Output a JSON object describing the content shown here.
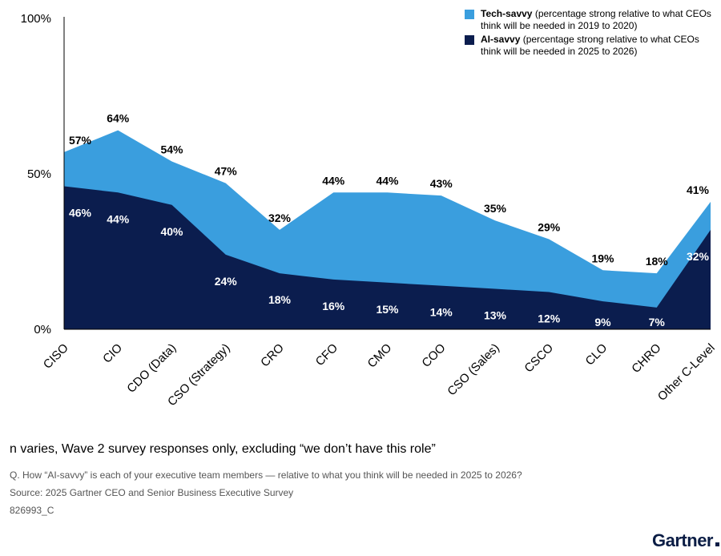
{
  "chart_data": {
    "type": "area",
    "categories": [
      "CISO",
      "CIO",
      "CDO (Data)",
      "CSO (Strategy)",
      "CRO",
      "CFO",
      "CMO",
      "COO",
      "CSO (Sales)",
      "CSCO",
      "CLO",
      "CHRO",
      "Other C-Level"
    ],
    "series": [
      {
        "name": "Tech-savvy",
        "values": [
          57,
          64,
          54,
          47,
          32,
          44,
          44,
          43,
          35,
          29,
          19,
          18,
          41
        ],
        "color": "#3a9ede",
        "labels": [
          "57%",
          "64%",
          "54%",
          "47%",
          "32%",
          "44%",
          "44%",
          "43%",
          "35%",
          "29%",
          "19%",
          "18%",
          "41%"
        ]
      },
      {
        "name": "AI-savvy",
        "values": [
          46,
          44,
          40,
          24,
          18,
          16,
          15,
          14,
          13,
          12,
          9,
          7,
          32
        ],
        "color": "#0b1d4e",
        "labels": [
          "46%",
          "44%",
          "40%",
          "24%",
          "18%",
          "16%",
          "15%",
          "14%",
          "13%",
          "12%",
          "9%",
          "7%",
          "32%"
        ]
      }
    ],
    "yticks": [
      "0%",
      "50%",
      "100%"
    ],
    "ylim": [
      0,
      100
    ],
    "grid": false,
    "legend_position": "top-right"
  },
  "legend": {
    "items": [
      {
        "name": "Tech-savvy",
        "desc": " (percentage strong relative to what CEOs think will be needed in 2019 to 2020)"
      },
      {
        "name": "AI-savvy",
        "desc": " (percentage strong relative to what CEOs think will be needed in 2025 to 2026)"
      }
    ]
  },
  "footnotes": {
    "main": "n varies, Wave 2 survey responses only, excluding “we don’t have this role”",
    "question": "Q. How “AI-savvy” is each of your executive team members — relative to what you think will be needed in 2025 to 2026?",
    "source": "Source: 2025 Gartner CEO and Senior Business Executive Survey",
    "code": "826993_C"
  },
  "brand": "Gartner"
}
